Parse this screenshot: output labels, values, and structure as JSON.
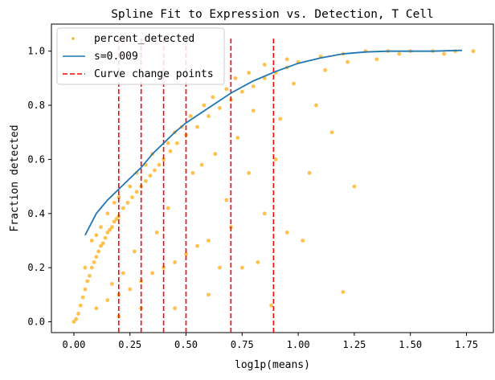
{
  "chart_data": {
    "type": "scatter",
    "title": "Spline Fit to Expression vs. Detection, T Cell",
    "xlabel": "log1p(means)",
    "ylabel": "Fraction detected",
    "xlim": [
      -0.1,
      1.87
    ],
    "ylim": [
      -0.04,
      1.1
    ],
    "x_ticks": [
      "0.00",
      "0.25",
      "0.50",
      "0.75",
      "1.00",
      "1.25",
      "1.50",
      "1.75"
    ],
    "y_ticks": [
      "0.0",
      "0.2",
      "0.4",
      "0.6",
      "0.8",
      "1.0"
    ],
    "grid": false,
    "legend_position": "top-left",
    "legend": [
      {
        "label": "percent_detected",
        "kind": "scatter",
        "color": "#ffa500"
      },
      {
        "label": "s=0.009",
        "kind": "line",
        "color": "#1f77b4"
      },
      {
        "label": "Curve change points",
        "kind": "dashed-line",
        "color": "#ff0000"
      }
    ],
    "series": [
      {
        "name": "percent_detected",
        "kind": "scatter",
        "color": "#ffa500",
        "points": [
          [
            0.0,
            0.0
          ],
          [
            0.01,
            0.01
          ],
          [
            0.02,
            0.03
          ],
          [
            0.03,
            0.06
          ],
          [
            0.04,
            0.09
          ],
          [
            0.05,
            0.12
          ],
          [
            0.06,
            0.15
          ],
          [
            0.07,
            0.17
          ],
          [
            0.08,
            0.2
          ],
          [
            0.09,
            0.22
          ],
          [
            0.1,
            0.24
          ],
          [
            0.11,
            0.26
          ],
          [
            0.12,
            0.28
          ],
          [
            0.13,
            0.29
          ],
          [
            0.14,
            0.31
          ],
          [
            0.15,
            0.33
          ],
          [
            0.16,
            0.34
          ],
          [
            0.17,
            0.35
          ],
          [
            0.18,
            0.37
          ],
          [
            0.19,
            0.38
          ],
          [
            0.2,
            0.39
          ],
          [
            0.22,
            0.42
          ],
          [
            0.24,
            0.44
          ],
          [
            0.26,
            0.46
          ],
          [
            0.28,
            0.48
          ],
          [
            0.3,
            0.5
          ],
          [
            0.32,
            0.52
          ],
          [
            0.34,
            0.54
          ],
          [
            0.36,
            0.56
          ],
          [
            0.38,
            0.58
          ],
          [
            0.4,
            0.6
          ],
          [
            0.43,
            0.63
          ],
          [
            0.46,
            0.66
          ],
          [
            0.5,
            0.69
          ],
          [
            0.55,
            0.72
          ],
          [
            0.6,
            0.76
          ],
          [
            0.65,
            0.79
          ],
          [
            0.7,
            0.82
          ],
          [
            0.75,
            0.85
          ],
          [
            0.8,
            0.87
          ],
          [
            0.85,
            0.9
          ],
          [
            0.9,
            0.92
          ],
          [
            0.95,
            0.94
          ],
          [
            1.0,
            0.96
          ],
          [
            1.1,
            0.98
          ],
          [
            1.2,
            0.99
          ],
          [
            1.3,
            1.0
          ],
          [
            1.4,
            1.0
          ],
          [
            1.5,
            1.0
          ],
          [
            1.6,
            1.0
          ],
          [
            1.7,
            1.0
          ],
          [
            1.78,
            1.0
          ],
          [
            0.05,
            0.2
          ],
          [
            0.08,
            0.3
          ],
          [
            0.1,
            0.32
          ],
          [
            0.12,
            0.35
          ],
          [
            0.15,
            0.4
          ],
          [
            0.18,
            0.44
          ],
          [
            0.2,
            0.46
          ],
          [
            0.25,
            0.5
          ],
          [
            0.28,
            0.55
          ],
          [
            0.32,
            0.58
          ],
          [
            0.35,
            0.62
          ],
          [
            0.42,
            0.66
          ],
          [
            0.45,
            0.7
          ],
          [
            0.48,
            0.72
          ],
          [
            0.52,
            0.76
          ],
          [
            0.58,
            0.8
          ],
          [
            0.62,
            0.83
          ],
          [
            0.68,
            0.86
          ],
          [
            0.72,
            0.9
          ],
          [
            0.78,
            0.92
          ],
          [
            0.85,
            0.95
          ],
          [
            0.95,
            0.97
          ],
          [
            0.1,
            0.05
          ],
          [
            0.15,
            0.08
          ],
          [
            0.2,
            0.1
          ],
          [
            0.25,
            0.12
          ],
          [
            0.3,
            0.15
          ],
          [
            0.35,
            0.18
          ],
          [
            0.4,
            0.2
          ],
          [
            0.45,
            0.22
          ],
          [
            0.5,
            0.25
          ],
          [
            0.55,
            0.28
          ],
          [
            0.6,
            0.3
          ],
          [
            0.7,
            0.35
          ],
          [
            0.2,
            0.02
          ],
          [
            0.3,
            0.05
          ],
          [
            0.45,
            0.05
          ],
          [
            0.6,
            0.1
          ],
          [
            0.75,
            0.2
          ],
          [
            0.85,
            0.4
          ],
          [
            0.9,
            0.6
          ],
          [
            1.05,
            0.55
          ],
          [
            1.25,
            0.5
          ],
          [
            1.2,
            0.11
          ],
          [
            0.95,
            0.33
          ],
          [
            1.02,
            0.3
          ],
          [
            0.78,
            0.55
          ],
          [
            0.82,
            0.22
          ],
          [
            0.88,
            0.06
          ],
          [
            0.65,
            0.2
          ],
          [
            0.68,
            0.45
          ],
          [
            0.42,
            0.42
          ],
          [
            0.37,
            0.33
          ],
          [
            0.27,
            0.26
          ],
          [
            0.22,
            0.18
          ],
          [
            0.17,
            0.14
          ],
          [
            1.12,
            0.93
          ],
          [
            1.22,
            0.96
          ],
          [
            1.35,
            0.97
          ],
          [
            1.45,
            0.99
          ],
          [
            1.65,
            0.99
          ],
          [
            1.15,
            0.7
          ],
          [
            1.08,
            0.8
          ],
          [
            0.98,
            0.88
          ],
          [
            0.92,
            0.75
          ],
          [
            0.8,
            0.78
          ],
          [
            0.73,
            0.68
          ],
          [
            0.63,
            0.62
          ],
          [
            0.57,
            0.58
          ],
          [
            0.53,
            0.55
          ]
        ]
      },
      {
        "name": "s=0.009",
        "kind": "line",
        "color": "#1f77b4",
        "x": [
          0.05,
          0.1,
          0.15,
          0.2,
          0.25,
          0.3,
          0.35,
          0.4,
          0.45,
          0.5,
          0.6,
          0.7,
          0.8,
          0.9,
          1.0,
          1.1,
          1.2,
          1.3,
          1.4,
          1.5,
          1.6,
          1.73
        ],
        "y": [
          0.32,
          0.4,
          0.45,
          0.49,
          0.53,
          0.57,
          0.62,
          0.66,
          0.7,
          0.735,
          0.79,
          0.845,
          0.89,
          0.925,
          0.955,
          0.975,
          0.99,
          0.997,
          1.0,
          1.0,
          1.0,
          1.003
        ]
      }
    ],
    "vlines": {
      "name": "Curve change points",
      "color": "#ff0000",
      "x": [
        0.2,
        0.3,
        0.4,
        0.5,
        0.7,
        0.89
      ],
      "ymin": -0.04,
      "ymax": 1.05
    }
  }
}
